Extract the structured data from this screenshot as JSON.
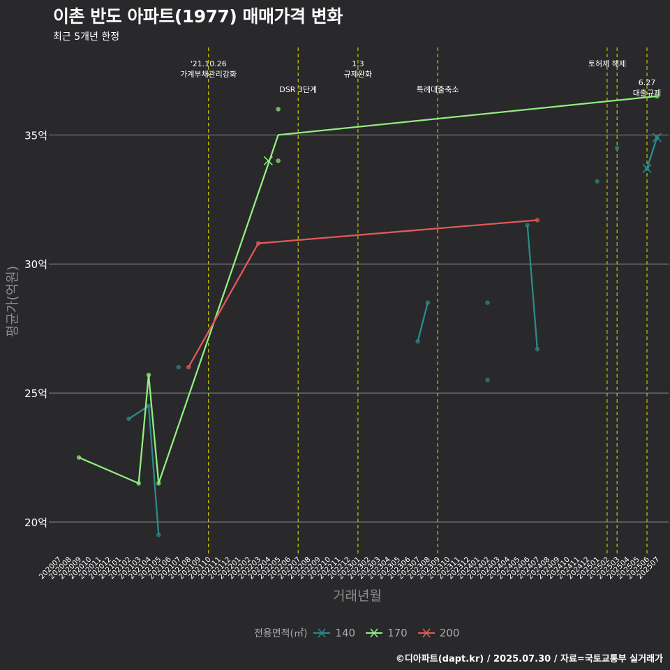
{
  "title": "이촌 반도 아파트(1977) 매매가격 변화",
  "subtitle": "최근 5개년 한정",
  "caption": "©디아파트(dapt.kr) / 2025.07.30 / 자료=국토교통부 실거래가",
  "colors": {
    "s140": "#2a8c88",
    "s170": "#90ee7e",
    "s200": "#e05a5a",
    "vline": "#c8c800",
    "grid": "#8a8a8a"
  },
  "chart_data": {
    "type": "line",
    "title": "이촌 반도 아파트(1977) 매매가격 변화",
    "xlabel": "거래년월",
    "ylabel": "평균가(억원)",
    "ylim": [
      18.7,
      38.5
    ],
    "yticks": [
      20,
      25,
      30,
      35
    ],
    "ytick_labels": [
      "20억",
      "25억",
      "30억",
      "35억"
    ],
    "categories": [
      "202007",
      "202008",
      "202009",
      "202010",
      "202011",
      "202012",
      "202101",
      "202102",
      "202103",
      "202104",
      "202105",
      "202106",
      "202107",
      "202108",
      "202109",
      "202110",
      "202111",
      "202112",
      "202201",
      "202202",
      "202203",
      "202204",
      "202205",
      "202206",
      "202207",
      "202208",
      "202209",
      "202210",
      "202211",
      "202212",
      "202301",
      "202302",
      "202303",
      "202304",
      "202305",
      "202306",
      "202307",
      "202308",
      "202309",
      "202310",
      "202311",
      "202312",
      "202401",
      "202402",
      "202403",
      "202404",
      "202405",
      "202406",
      "202407",
      "202408",
      "202409",
      "202410",
      "202411",
      "202412",
      "202501",
      "202502",
      "202503",
      "202504",
      "202505",
      "202506",
      "202507"
    ],
    "legend_title": "전용면적(㎡)",
    "series": [
      {
        "name": "140",
        "color_key": "s140",
        "lines": [
          [
            [
              "202102",
              24.0
            ],
            [
              "202104",
              24.5
            ],
            [
              "202105",
              19.5
            ]
          ],
          [
            [
              "202307",
              27.0
            ],
            [
              "202308",
              28.5
            ]
          ],
          [
            [
              "202406",
              31.5
            ],
            [
              "202407",
              26.7
            ]
          ],
          [
            [
              "202506",
              33.7
            ],
            [
              "202507",
              34.9
            ]
          ]
        ],
        "points": [
          [
            "202102",
            24.0
          ],
          [
            "202104",
            24.5
          ],
          [
            "202105",
            19.5
          ],
          [
            "202107",
            26.0
          ],
          [
            "202307",
            27.0
          ],
          [
            "202308",
            28.5
          ],
          [
            "202402",
            28.5
          ],
          [
            "202402",
            25.5
          ],
          [
            "202406",
            31.5
          ],
          [
            "202407",
            26.7
          ],
          [
            "202501",
            33.2
          ],
          [
            "202503",
            34.5
          ],
          [
            "202506",
            33.7
          ],
          [
            "202507",
            34.9
          ]
        ],
        "crosses": [
          [
            "202506",
            33.7
          ],
          [
            "202507",
            34.9
          ]
        ]
      },
      {
        "name": "170",
        "color_key": "s170",
        "lines": [
          [
            [
              "202009",
              22.5
            ],
            [
              "202103",
              21.5
            ],
            [
              "202104",
              25.7
            ],
            [
              "202105",
              21.5
            ],
            [
              "202205",
              35.0
            ],
            [
              "202507",
              36.5
            ]
          ]
        ],
        "points": [
          [
            "202009",
            22.5
          ],
          [
            "202103",
            21.5
          ],
          [
            "202104",
            25.7
          ],
          [
            "202105",
            21.5
          ],
          [
            "202205",
            36.0
          ],
          [
            "202205",
            34.0
          ],
          [
            "202507",
            36.5
          ]
        ],
        "crosses": [
          [
            "202204",
            34.0
          ]
        ]
      },
      {
        "name": "200",
        "color_key": "s200",
        "lines": [
          [
            [
              "202108",
              26.0
            ],
            [
              "202203",
              30.8
            ],
            [
              "202407",
              31.7
            ]
          ]
        ],
        "points": [
          [
            "202108",
            26.0
          ],
          [
            "202203",
            30.8
          ],
          [
            "202407",
            31.7
          ]
        ],
        "crosses": []
      }
    ],
    "events": [
      {
        "x": "202110",
        "lines": [
          "'21.10.26",
          "가계부채관리강화"
        ],
        "row": 0
      },
      {
        "x": "202207",
        "lines": [
          "DSR 3단계"
        ],
        "row": 1
      },
      {
        "x": "202301",
        "lines": [
          "1.3",
          "규제완화"
        ],
        "row": 0
      },
      {
        "x": "202309",
        "lines": [
          "특례대출축소"
        ],
        "row": 1
      },
      {
        "x": "202502",
        "lines": [
          "토허제 해제"
        ],
        "row": 0
      },
      {
        "x": "202503",
        "lines": [],
        "row": 0
      },
      {
        "x": "202506",
        "lines": [
          "6.27",
          "대출규제"
        ],
        "row": 1
      }
    ]
  }
}
